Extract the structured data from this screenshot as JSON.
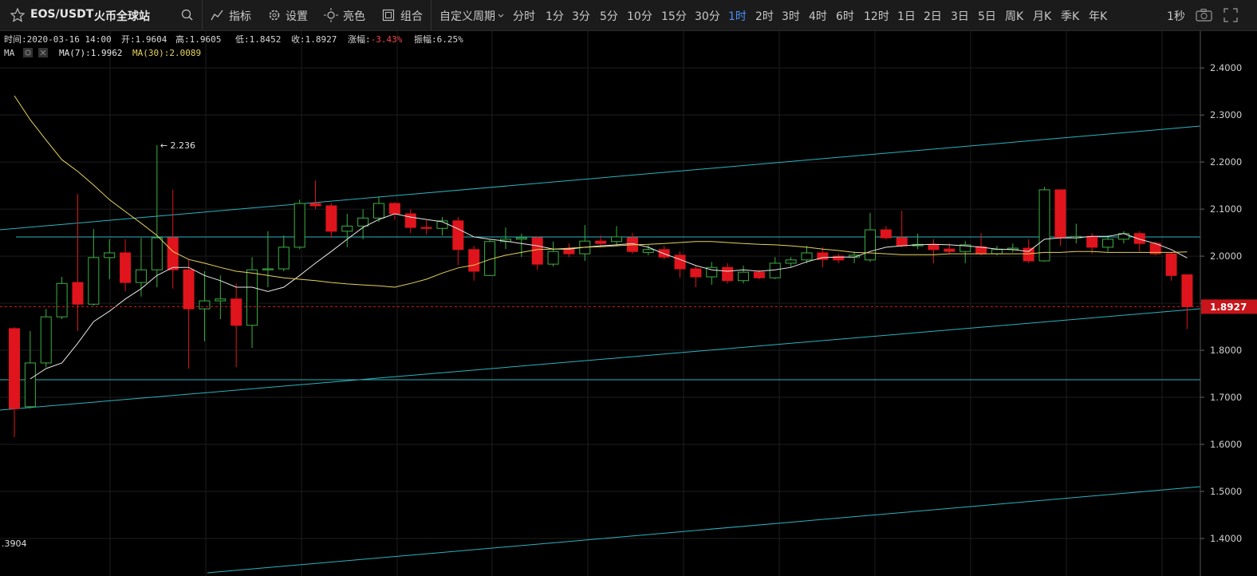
{
  "toolbar": {
    "symbol": "EOS/USDT",
    "exchange": "火币全球站",
    "tools": [
      "指标",
      "设置",
      "亮色",
      "组合"
    ],
    "custom_period": "自定义周期",
    "periods": [
      "分时",
      "1分",
      "3分",
      "5分",
      "10分",
      "15分",
      "30分",
      "1时",
      "2时",
      "3时",
      "4时",
      "6时",
      "12时",
      "1日",
      "2日",
      "3日",
      "5日",
      "周K",
      "月K",
      "季K",
      "年K"
    ],
    "active_period": "1时",
    "refresh": "1秒"
  },
  "info": [
    {
      "label": "时间:",
      "value": "2020-03-16 14:00"
    },
    {
      "label": "开:",
      "value": "1.9604"
    },
    {
      "label": "高:",
      "value": "1.9605"
    },
    {
      "label": "低:",
      "value": "1.8452"
    },
    {
      "label": "收:",
      "value": "1.8927"
    },
    {
      "label": "涨幅:",
      "value": "-3.43%",
      "color": "#f04848"
    },
    {
      "label": "振幅:",
      "value": "6.25%"
    }
  ],
  "indicator": "MA",
  "chart_data": {
    "type": "candlestick",
    "open": [
      1.846,
      1.68,
      1.773,
      1.871,
      1.944,
      1.898,
      1.997,
      2.007,
      1.944,
      1.971,
      2.039,
      1.971,
      1.888,
      1.905,
      1.909,
      1.853,
      1.971,
      1.973,
      2.019,
      2.112,
      2.107,
      2.053,
      2.064,
      2.081,
      2.112,
      2.09,
      2.061,
      2.059,
      2.075,
      2.014,
      1.959,
      2.031,
      2.036,
      2.039,
      1.983,
      2.015,
      2.005,
      2.032,
      2.031,
      2.039,
      2.008,
      2.014,
      2.002,
      1.973,
      1.956,
      1.976,
      1.948,
      1.966,
      1.954,
      1.985,
      1.992,
      2.007,
      2.0,
      1.998,
      1.992,
      2.056,
      2.039,
      2.022,
      2.025,
      2.015,
      2.01,
      2.02,
      2.005,
      2.014,
      2.017,
      1.99,
      2.141,
      2.039,
      2.042,
      2.019,
      2.036,
      2.048,
      2.027,
      2.005,
      1.9604
    ],
    "high": [
      1.849,
      1.841,
      1.888,
      1.956,
      2.132,
      2.058,
      2.036,
      2.036,
      2.039,
      2.236,
      2.141,
      1.993,
      1.968,
      1.959,
      1.942,
      1.998,
      2.053,
      2.044,
      2.12,
      2.161,
      2.112,
      2.09,
      2.1,
      2.127,
      2.115,
      2.1,
      2.076,
      2.083,
      2.083,
      2.022,
      2.036,
      2.061,
      2.048,
      2.042,
      2.031,
      2.027,
      2.066,
      2.044,
      2.064,
      2.049,
      2.024,
      2.022,
      2.01,
      1.98,
      1.988,
      1.985,
      1.98,
      1.971,
      1.998,
      1.998,
      2.022,
      2.019,
      2.005,
      2.01,
      2.092,
      2.064,
      2.097,
      2.048,
      2.036,
      2.027,
      2.032,
      2.049,
      2.022,
      2.027,
      2.036,
      2.147,
      2.141,
      2.069,
      2.049,
      2.044,
      2.053,
      2.053,
      2.031,
      2.008,
      1.9605
    ],
    "low": [
      1.615,
      1.676,
      1.764,
      1.866,
      1.841,
      1.895,
      1.951,
      1.925,
      1.914,
      1.934,
      1.931,
      1.761,
      1.819,
      1.866,
      1.764,
      1.805,
      1.934,
      1.968,
      2.015,
      2.1,
      2.039,
      2.019,
      2.036,
      2.073,
      2.078,
      2.049,
      2.046,
      2.044,
      1.981,
      1.948,
      1.958,
      2.015,
      1.998,
      1.971,
      1.978,
      1.998,
      1.99,
      2.019,
      2.022,
      2.005,
      2.002,
      1.993,
      1.954,
      1.934,
      1.939,
      1.942,
      1.942,
      1.951,
      1.951,
      1.976,
      1.985,
      1.976,
      1.985,
      1.985,
      1.988,
      2.036,
      2.019,
      2.015,
      1.985,
      2.005,
      1.985,
      2.002,
      2.002,
      2.008,
      1.985,
      1.988,
      2.022,
      2.027,
      2.005,
      2.01,
      2.027,
      2.01,
      2.002,
      1.948,
      1.8452
    ],
    "close": [
      1.676,
      1.773,
      1.871,
      1.942,
      1.898,
      1.997,
      2.007,
      1.944,
      1.971,
      2.039,
      1.971,
      1.888,
      1.905,
      1.909,
      1.853,
      1.971,
      1.973,
      2.019,
      2.112,
      2.107,
      2.053,
      2.064,
      2.081,
      2.112,
      2.09,
      2.061,
      2.059,
      2.075,
      2.014,
      1.968,
      2.031,
      2.036,
      2.039,
      1.983,
      2.01,
      2.005,
      2.032,
      2.027,
      2.041,
      2.01,
      2.014,
      1.998,
      1.973,
      1.956,
      1.976,
      1.948,
      1.966,
      1.954,
      1.985,
      1.992,
      2.007,
      1.993,
      1.992,
      2.002,
      2.056,
      2.039,
      2.022,
      2.025,
      2.014,
      2.01,
      2.024,
      2.005,
      2.014,
      2.017,
      1.99,
      2.141,
      2.039,
      2.042,
      2.019,
      2.036,
      2.048,
      2.027,
      2.005,
      1.959,
      1.8927
    ],
    "up_color": "#3cb043",
    "down_color": "#e0141c",
    "series": [
      {
        "name": "MA(7):1.9962",
        "color": "#e8e8e8",
        "values": [
          null,
          1.739,
          1.761,
          1.773,
          1.815,
          1.861,
          1.883,
          1.909,
          1.931,
          1.959,
          1.976,
          1.976,
          1.959,
          1.948,
          1.934,
          1.934,
          1.925,
          1.934,
          1.959,
          1.985,
          2.01,
          2.036,
          2.061,
          2.078,
          2.09,
          2.083,
          2.078,
          2.073,
          2.058,
          2.041,
          2.036,
          2.032,
          2.027,
          2.022,
          2.015,
          2.015,
          2.019,
          2.022,
          2.024,
          2.027,
          2.019,
          2.005,
          1.993,
          1.98,
          1.971,
          1.968,
          1.971,
          1.968,
          1.971,
          1.976,
          1.988,
          1.997,
          1.998,
          1.998,
          2.01,
          2.019,
          2.022,
          2.024,
          2.025,
          2.024,
          2.022,
          2.019,
          2.015,
          2.014,
          2.01,
          2.036,
          2.039,
          2.039,
          2.042,
          2.042,
          2.048,
          2.036,
          2.027,
          2.014,
          1.9962
        ]
      },
      {
        "name": "MA(30):2.0089",
        "color": "#e6d25a",
        "values": [
          2.341,
          2.29,
          2.247,
          2.205,
          2.18,
          2.151,
          2.12,
          2.095,
          2.07,
          2.044,
          2.01,
          1.993,
          1.985,
          1.976,
          1.968,
          1.964,
          1.959,
          1.954,
          1.951,
          1.948,
          1.944,
          1.941,
          1.939,
          1.937,
          1.934,
          1.942,
          1.951,
          1.964,
          1.975,
          1.981,
          1.993,
          2.002,
          2.008,
          2.014,
          2.015,
          2.017,
          2.019,
          2.02,
          2.022,
          2.024,
          2.025,
          2.027,
          2.029,
          2.031,
          2.031,
          2.029,
          2.027,
          2.025,
          2.024,
          2.022,
          2.019,
          2.015,
          2.012,
          2.008,
          2.007,
          2.005,
          2.003,
          2.003,
          2.003,
          2.005,
          2.005,
          2.005,
          2.005,
          2.005,
          2.005,
          2.008,
          2.008,
          2.01,
          2.01,
          2.008,
          2.008,
          2.008,
          2.008,
          2.008,
          2.0089
        ]
      }
    ],
    "last_price": 1.8927,
    "annotations": [
      "← 2.236",
      ".3904"
    ],
    "ylim": [
      1.327,
      2.48
    ],
    "yticks": [
      {
        "value": 1.4,
        "label": "1.4000"
      },
      {
        "value": 1.5,
        "label": "1.5000"
      },
      {
        "value": 1.6,
        "label": "1.6000"
      },
      {
        "value": 1.7,
        "label": "1.7000"
      },
      {
        "value": 1.8,
        "label": "1.8000"
      },
      {
        "value": 1.9,
        "label": "1.9000"
      },
      {
        "value": 2.0,
        "label": "2.0000"
      },
      {
        "value": 2.1,
        "label": "2.1000"
      },
      {
        "value": 2.2,
        "label": "2.2000"
      },
      {
        "value": 2.3,
        "label": "2.3000"
      },
      {
        "value": 2.4,
        "label": "2.4000"
      }
    ],
    "grid": true
  }
}
